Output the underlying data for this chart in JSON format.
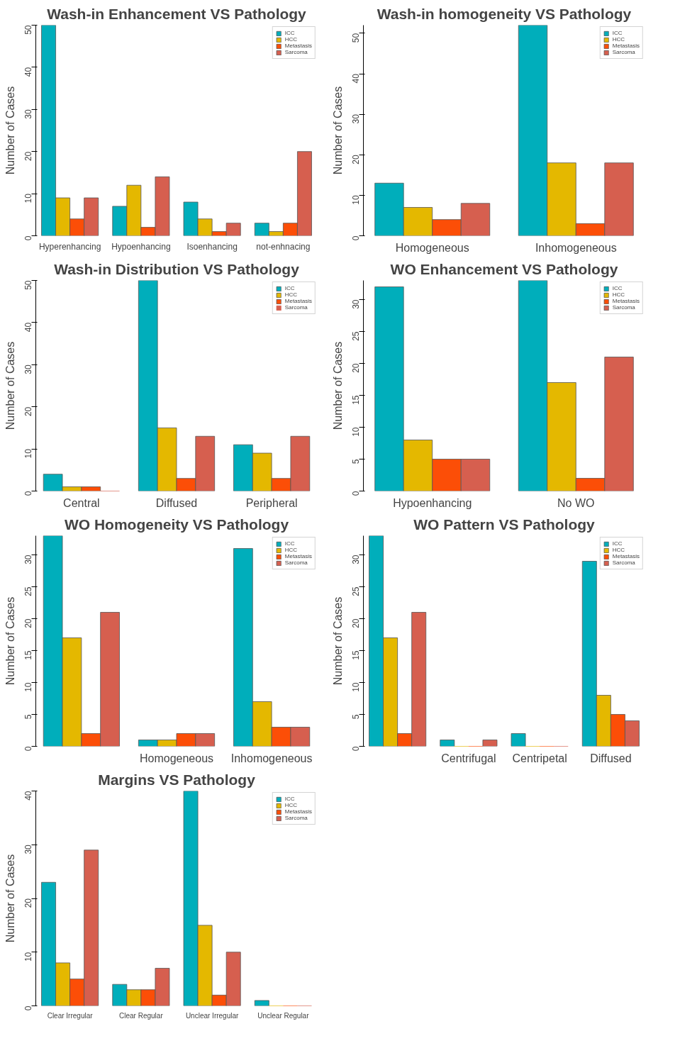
{
  "chart_data": [
    {
      "type": "bar",
      "title": "Wash-in Enhancement VS Pathology",
      "ylabel": "Number of Cases",
      "categories": [
        "Hyperenhancing",
        "Hypoenhancing",
        "Isoenhancing",
        "not-enhnacing"
      ],
      "series": [
        {
          "name": "ICC",
          "color": "#00aebb",
          "values": [
            50,
            7,
            8,
            3
          ]
        },
        {
          "name": "HCC",
          "color": "#e4b800",
          "values": [
            9,
            12,
            4,
            1
          ]
        },
        {
          "name": "Metastasis",
          "color": "#fc4e07",
          "values": [
            4,
            2,
            1,
            3
          ]
        },
        {
          "name": "Sarcoma",
          "color": "#d65f4f",
          "values": [
            9,
            14,
            3,
            20
          ]
        }
      ],
      "ylim": [
        0,
        50
      ],
      "yticks": [
        0,
        10,
        20,
        30,
        40,
        50
      ],
      "legend": "top right",
      "grid": false
    },
    {
      "type": "bar",
      "title": "Wash-in homogeneity VS Pathology",
      "ylabel": "Number of Cases",
      "categories": [
        "Homogeneous",
        "Inhomogeneous"
      ],
      "series": [
        {
          "name": "ICC",
          "color": "#00aebb",
          "values": [
            13,
            52
          ]
        },
        {
          "name": "HCC",
          "color": "#e4b800",
          "values": [
            7,
            18
          ]
        },
        {
          "name": "Metastasis",
          "color": "#fc4e07",
          "values": [
            4,
            3
          ]
        },
        {
          "name": "Sarcoma",
          "color": "#d65f4f",
          "values": [
            8,
            18
          ]
        }
      ],
      "ylim": [
        0,
        52
      ],
      "yticks": [
        0,
        10,
        20,
        30,
        40,
        50
      ],
      "legend": "top right",
      "grid": false
    },
    {
      "type": "bar",
      "title": "Wash-in Distribution VS Pathology",
      "ylabel": "Number of Cases",
      "categories": [
        "Central",
        "Diffused",
        "Peripheral"
      ],
      "series": [
        {
          "name": "ICC",
          "color": "#00aebb",
          "values": [
            4,
            50,
            11
          ]
        },
        {
          "name": "HCC",
          "color": "#e4b800",
          "values": [
            1,
            15,
            9
          ]
        },
        {
          "name": "Metastasis",
          "color": "#fc4e07",
          "values": [
            1,
            3,
            3
          ]
        },
        {
          "name": "Sarcoma",
          "color": "#d65f4f",
          "values": [
            0,
            13,
            13
          ]
        }
      ],
      "ylim": [
        0,
        50
      ],
      "yticks": [
        0,
        10,
        20,
        30,
        40,
        50
      ],
      "legend": "top right",
      "grid": false
    },
    {
      "type": "bar",
      "title": "WO Enhancement VS Pathology",
      "ylabel": "Number of Cases",
      "categories": [
        "Hypoenhancing",
        "No WO"
      ],
      "series": [
        {
          "name": "ICC",
          "color": "#00aebb",
          "values": [
            32,
            33
          ]
        },
        {
          "name": "HCC",
          "color": "#e4b800",
          "values": [
            8,
            17
          ]
        },
        {
          "name": "Metastasis",
          "color": "#fc4e07",
          "values": [
            5,
            2
          ]
        },
        {
          "name": "Sarcoma",
          "color": "#d65f4f",
          "values": [
            5,
            21
          ]
        }
      ],
      "ylim": [
        0,
        33
      ],
      "yticks": [
        0,
        5,
        10,
        15,
        20,
        25,
        30
      ],
      "legend": "top right",
      "grid": false
    },
    {
      "type": "bar",
      "title": "WO Homogeneity VS Pathology",
      "ylabel": "Number of Cases",
      "categories": [
        null,
        "Homogeneous",
        "Inhomogeneous"
      ],
      "series": [
        {
          "name": "ICC",
          "color": "#00aebb",
          "values": [
            33,
            1,
            31
          ]
        },
        {
          "name": "HCC",
          "color": "#e4b800",
          "values": [
            17,
            1,
            7
          ]
        },
        {
          "name": "Metastasis",
          "color": "#fc4e07",
          "values": [
            2,
            2,
            3
          ]
        },
        {
          "name": "Sarcoma",
          "color": "#d65f4f",
          "values": [
            21,
            2,
            3
          ]
        }
      ],
      "ylim": [
        0,
        33
      ],
      "yticks": [
        0,
        5,
        10,
        15,
        20,
        25,
        30
      ],
      "legend": "top right",
      "grid": false
    },
    {
      "type": "bar",
      "title": "WO Pattern VS Pathology",
      "ylabel": "Number of Cases",
      "categories": [
        null,
        "Centrifugal",
        "Centripetal",
        "Diffused"
      ],
      "series": [
        {
          "name": "ICC",
          "color": "#00aebb",
          "values": [
            33,
            1,
            2,
            29
          ]
        },
        {
          "name": "HCC",
          "color": "#e4b800",
          "values": [
            17,
            0,
            0,
            8
          ]
        },
        {
          "name": "Metastasis",
          "color": "#fc4e07",
          "values": [
            2,
            0,
            0,
            5
          ]
        },
        {
          "name": "Sarcoma",
          "color": "#d65f4f",
          "values": [
            21,
            1,
            0,
            4
          ]
        }
      ],
      "ylim": [
        0,
        33
      ],
      "yticks": [
        0,
        5,
        10,
        15,
        20,
        25,
        30
      ],
      "legend": "top right",
      "grid": false
    },
    {
      "type": "bar",
      "title": "Margins VS Pathology",
      "ylabel": "Number of Cases",
      "categories": [
        "Clear Irregular",
        "Clear Regular",
        "Unclear Irregular",
        "Unclear Regular"
      ],
      "series": [
        {
          "name": "ICC",
          "color": "#00aebb",
          "values": [
            23,
            4,
            40,
            1
          ]
        },
        {
          "name": "HCC",
          "color": "#e4b800",
          "values": [
            8,
            3,
            15,
            0
          ]
        },
        {
          "name": "Metastasis",
          "color": "#fc4e07",
          "values": [
            5,
            3,
            2,
            0
          ]
        },
        {
          "name": "Sarcoma",
          "color": "#d65f4f",
          "values": [
            29,
            7,
            10,
            0
          ]
        }
      ],
      "ylim": [
        0,
        40
      ],
      "yticks": [
        0,
        10,
        20,
        30,
        40
      ],
      "legend": "top right",
      "grid": false
    }
  ]
}
